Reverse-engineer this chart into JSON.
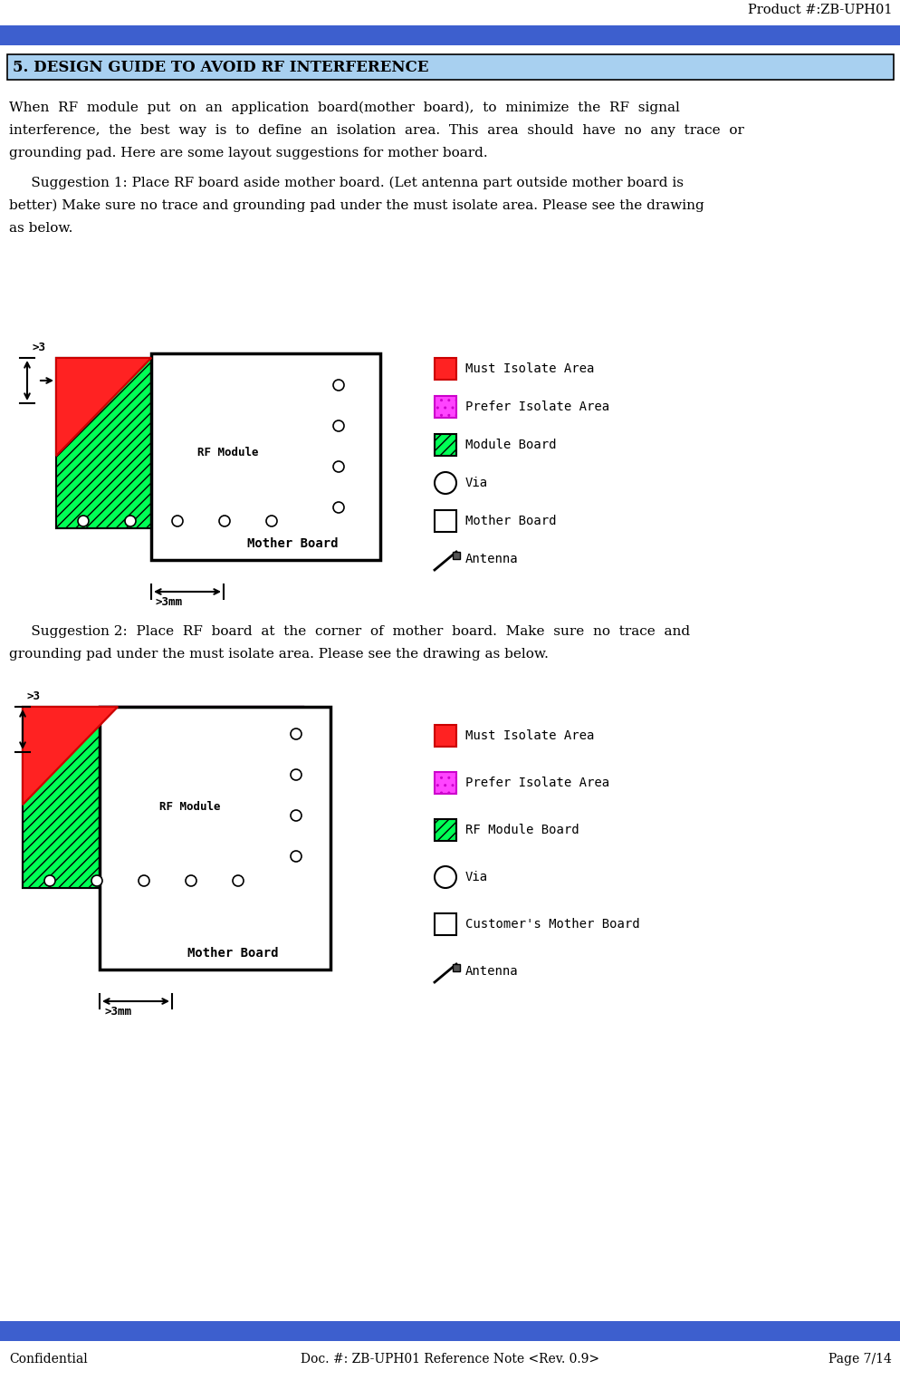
{
  "title_text": "Product #:ZB-UPH01",
  "header_bar_color": "#3d5fce",
  "section_title": "5. DESIGN GUIDE TO AVOID RF INTERFERENCE",
  "section_bg": "#a8d0f0",
  "section_border": "#000000",
  "footer_bar_color": "#3d5fce",
  "footer_text_left": "Confidential",
  "footer_text_mid": "Doc. #: ZB-UPH01 Reference Note <Rev. 0.9>",
  "footer_text_right": "Page 7/14",
  "must_isolate_color": "#ff2222",
  "prefer_isolate_color": "#ff44ff",
  "module_board_color": "#00ff55",
  "legend1_items": [
    "Must Isolate Area",
    "Prefer Isolate Area",
    "Module Board",
    "Via",
    "Mother Board",
    "Antenna"
  ],
  "legend2_items": [
    "Must Isolate Area",
    "Prefer Isolate Area",
    "RF Module Board",
    "Via",
    "Customer's Mother Board",
    "Antenna"
  ],
  "body1_line1": "When  RF  module  put  on  an  application  board(mother  board),  to  minimize  the  RF  signal",
  "body1_line2": "interference,  the  best  way  is  to  define  an  isolation  area.  This  area  should  have  no  any  trace  or",
  "body1_line3": "grounding pad. Here are some layout suggestions for mother board.",
  "sug1_line1": "     Suggestion 1: Place RF board aside mother board. (Let antenna part outside mother board is",
  "sug1_line2": "better) Make sure no trace and grounding pad under the must isolate area. Please see the drawing",
  "sug1_line3": "as below.",
  "sug2_line1": "     Suggestion 2:  Place  RF  board  at  the  corner  of  mother  board.  Make  sure  no  trace  and",
  "sug2_line2": "grounding pad under the must isolate area. Please see the drawing as below."
}
